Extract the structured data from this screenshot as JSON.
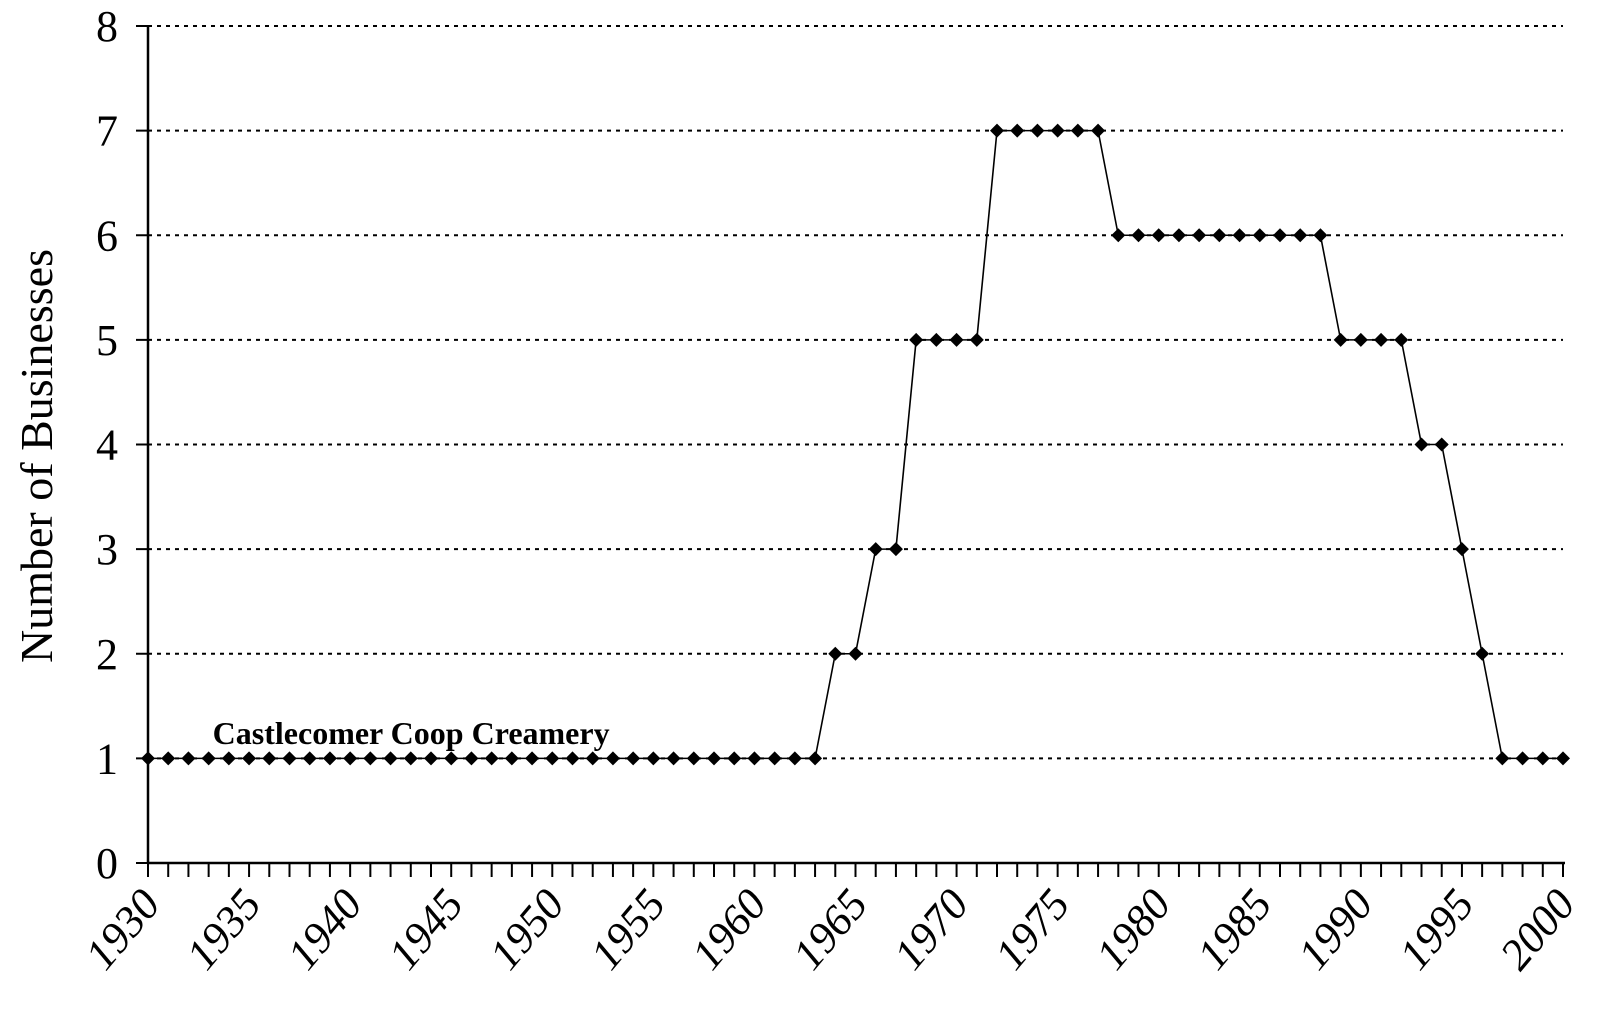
{
  "chart_data": {
    "type": "line",
    "title": "",
    "xlabel": "",
    "ylabel": "Number of Businesses",
    "xlim": [
      1930,
      2000
    ],
    "ylim": [
      0,
      8
    ],
    "y_ticks": [
      0,
      1,
      2,
      3,
      4,
      5,
      6,
      7,
      8
    ],
    "x_tick_labels": [
      1930,
      1935,
      1940,
      1945,
      1950,
      1955,
      1960,
      1965,
      1970,
      1975,
      1980,
      1985,
      1990,
      1995,
      2000
    ],
    "grid": "horizontal dotted",
    "legend": "none",
    "marker": "diamond",
    "series": [
      {
        "x": [
          1930,
          1931,
          1932,
          1933,
          1934,
          1935,
          1936,
          1937,
          1938,
          1939,
          1940,
          1941,
          1942,
          1943,
          1944,
          1945,
          1946,
          1947,
          1948,
          1949,
          1950,
          1951,
          1952,
          1953,
          1954,
          1955,
          1956,
          1957,
          1958,
          1959,
          1960,
          1961,
          1962,
          1963,
          1964,
          1965,
          1966,
          1967,
          1968,
          1969,
          1970,
          1971,
          1972,
          1973,
          1974,
          1975,
          1976,
          1977,
          1978,
          1979,
          1980,
          1981,
          1982,
          1983,
          1984,
          1985,
          1986,
          1987,
          1988,
          1989,
          1990,
          1991,
          1992,
          1993,
          1994,
          1995,
          1996,
          1997,
          1998,
          1999,
          2000
        ],
        "values": [
          1,
          1,
          1,
          1,
          1,
          1,
          1,
          1,
          1,
          1,
          1,
          1,
          1,
          1,
          1,
          1,
          1,
          1,
          1,
          1,
          1,
          1,
          1,
          1,
          1,
          1,
          1,
          1,
          1,
          1,
          1,
          1,
          1,
          1,
          2,
          2,
          3,
          3,
          5,
          5,
          5,
          5,
          7,
          7,
          7,
          7,
          7,
          7,
          6,
          6,
          6,
          6,
          6,
          6,
          6,
          6,
          6,
          6,
          6,
          5,
          5,
          5,
          5,
          4,
          4,
          3,
          2,
          1,
          1,
          1,
          1
        ]
      }
    ],
    "annotations": [
      {
        "text": "Castlecomer Coop Creamery",
        "x": 1933.2,
        "y": 1.25
      }
    ],
    "colors": {
      "line": "#000000",
      "marker": "#000000",
      "grid": "#000000",
      "axis": "#000000"
    }
  }
}
